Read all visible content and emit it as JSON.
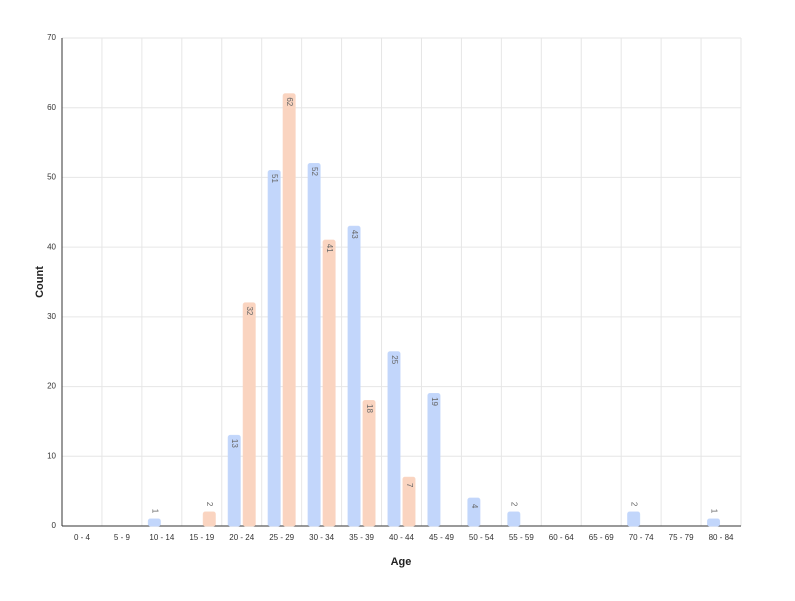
{
  "chart_data": {
    "type": "bar",
    "x_label": "Age",
    "y_label": "Count",
    "categories": [
      "0 - 4",
      "5 - 9",
      "10 - 14",
      "15 - 19",
      "20 - 24",
      "25 - 29",
      "30 - 34",
      "35 - 39",
      "40 - 44",
      "45 - 49",
      "50 - 54",
      "55 - 59",
      "60 - 64",
      "65 - 69",
      "70 - 74",
      "75 - 79",
      "80 - 84"
    ],
    "series": [
      {
        "color": "#c2d6fb",
        "values": [
          null,
          null,
          1,
          null,
          13,
          51,
          52,
          43,
          25,
          19,
          4,
          2,
          null,
          null,
          2,
          null,
          1
        ]
      },
      {
        "color": "#fad4c0",
        "values": [
          null,
          null,
          null,
          2,
          32,
          62,
          41,
          18,
          7,
          null,
          null,
          null,
          null,
          null,
          null,
          null,
          null
        ]
      }
    ],
    "ylim": [
      0,
      70
    ],
    "yticks": [
      0,
      10,
      20,
      30,
      40,
      50,
      60,
      70
    ],
    "grid": true
  }
}
